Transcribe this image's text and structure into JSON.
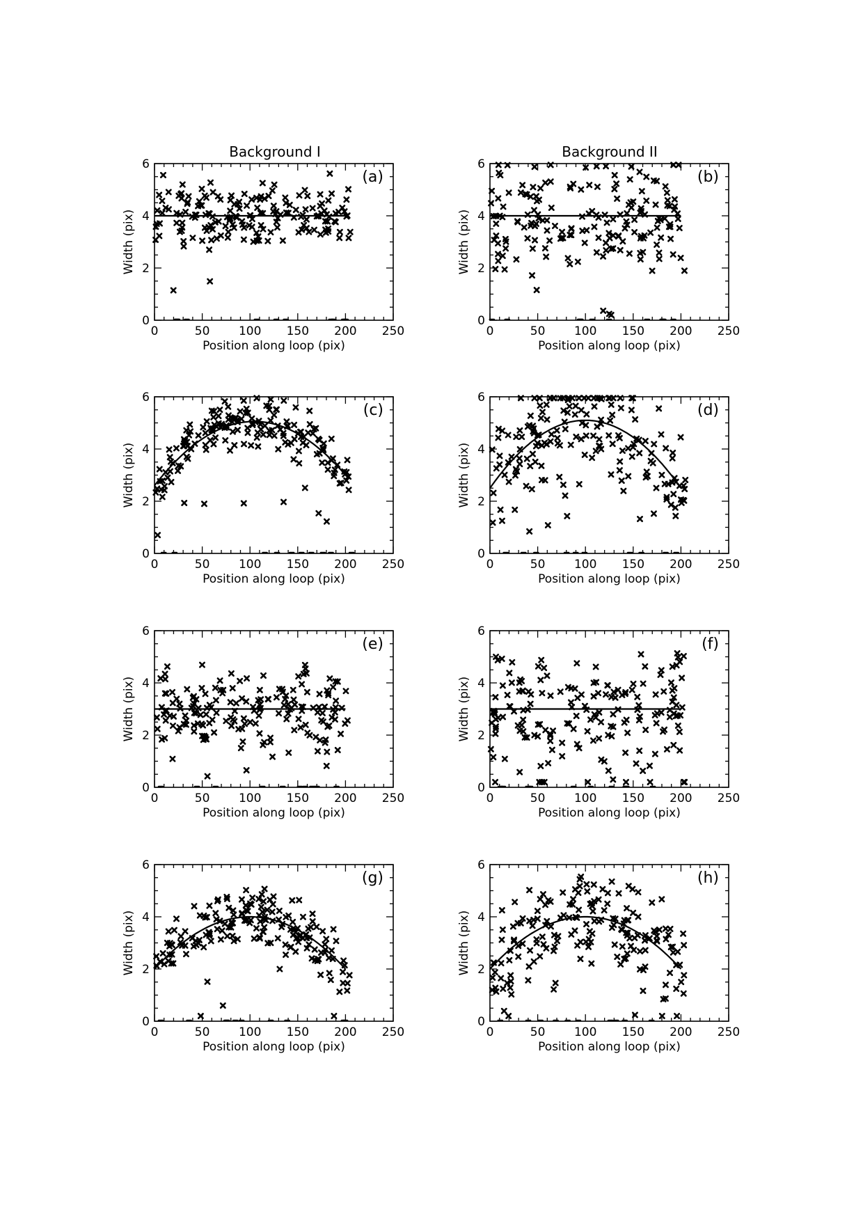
{
  "columns": [
    "Background I",
    "Background II"
  ],
  "chart_data": [
    {
      "id": "a",
      "type": "scatter",
      "panel_label": "(a)",
      "xlabel": "Position along loop (pix)",
      "ylabel": "Width (pix)",
      "xlim": [
        0,
        250
      ],
      "ylim": [
        0,
        6
      ],
      "xticks": [
        0,
        50,
        100,
        150,
        200,
        250
      ],
      "yticks": [
        0,
        2,
        4,
        6
      ],
      "fit": {
        "kind": "constant",
        "a0": 4.0,
        "a1": 0,
        "a2": 0,
        "x_range": [
          0,
          200
        ]
      },
      "seed": 11,
      "spread": 0.6
    },
    {
      "id": "b",
      "type": "scatter",
      "panel_label": "(b)",
      "xlabel": "Position along loop (pix)",
      "ylabel": "Width (pix)",
      "xlim": [
        0,
        250
      ],
      "ylim": [
        0,
        6
      ],
      "xticks": [
        0,
        50,
        100,
        150,
        200,
        250
      ],
      "yticks": [
        0,
        2,
        4,
        6
      ],
      "fit": {
        "kind": "constant",
        "a0": 4.0,
        "a1": 0,
        "a2": 0,
        "x_range": [
          0,
          200
        ]
      },
      "seed": 23,
      "spread": 1.0
    },
    {
      "id": "c",
      "type": "scatter",
      "panel_label": "(c)",
      "xlabel": "Position along loop (pix)",
      "ylabel": "Width (pix)",
      "xlim": [
        0,
        250
      ],
      "ylim": [
        0,
        6
      ],
      "xticks": [
        0,
        50,
        100,
        150,
        200,
        250
      ],
      "yticks": [
        0,
        2,
        4,
        6
      ],
      "fit": {
        "kind": "quadratic",
        "a0": 2.6,
        "a1": 0.047,
        "a2": -0.000225,
        "x_range": [
          0,
          200
        ]
      },
      "seed": 37,
      "spread": 0.45
    },
    {
      "id": "d",
      "type": "scatter",
      "panel_label": "(d)",
      "xlabel": "Position along loop (pix)",
      "ylabel": "Width (pix)",
      "xlim": [
        0,
        250
      ],
      "ylim": [
        0,
        6
      ],
      "xticks": [
        0,
        50,
        100,
        150,
        200,
        250
      ],
      "yticks": [
        0,
        2,
        4,
        6
      ],
      "fit": {
        "kind": "quadratic",
        "a0": 2.5,
        "a1": 0.052,
        "a2": -0.00026,
        "x_range": [
          0,
          200
        ]
      },
      "seed": 41,
      "spread": 1.0
    },
    {
      "id": "e",
      "type": "scatter",
      "panel_label": "(e)",
      "xlabel": "Position along loop (pix)",
      "ylabel": "Width (pix)",
      "xlim": [
        0,
        250
      ],
      "ylim": [
        0,
        6
      ],
      "xticks": [
        0,
        50,
        100,
        150,
        200,
        250
      ],
      "yticks": [
        0,
        2,
        4,
        6
      ],
      "fit": {
        "kind": "constant",
        "a0": 3.0,
        "a1": 0,
        "a2": 0,
        "x_range": [
          0,
          200
        ]
      },
      "seed": 53,
      "spread": 0.8
    },
    {
      "id": "f",
      "type": "scatter",
      "panel_label": "(f)",
      "xlabel": "Position along loop (pix)",
      "ylabel": "Width (pix)",
      "xlim": [
        0,
        250
      ],
      "ylim": [
        0,
        6
      ],
      "xticks": [
        0,
        50,
        100,
        150,
        200,
        250
      ],
      "yticks": [
        0,
        2,
        4,
        6
      ],
      "fit": {
        "kind": "constant",
        "a0": 3.0,
        "a1": 0,
        "a2": 0,
        "x_range": [
          0,
          200
        ]
      },
      "seed": 67,
      "spread": 1.1
    },
    {
      "id": "g",
      "type": "scatter",
      "panel_label": "(g)",
      "xlabel": "Position along loop (pix)",
      "ylabel": "Width (pix)",
      "xlim": [
        0,
        250
      ],
      "ylim": [
        0,
        6
      ],
      "xticks": [
        0,
        50,
        100,
        150,
        200,
        250
      ],
      "yticks": [
        0,
        2,
        4,
        6
      ],
      "fit": {
        "kind": "quadratic",
        "a0": 2.0,
        "a1": 0.04,
        "a2": -0.0002,
        "x_range": [
          0,
          200
        ]
      },
      "seed": 79,
      "spread": 0.5
    },
    {
      "id": "h",
      "type": "scatter",
      "panel_label": "(h)",
      "xlabel": "Position along loop (pix)",
      "ylabel": "Width (pix)",
      "xlim": [
        0,
        250
      ],
      "ylim": [
        0,
        6
      ],
      "xticks": [
        0,
        50,
        100,
        150,
        200,
        250
      ],
      "yticks": [
        0,
        2,
        4,
        6
      ],
      "fit": {
        "kind": "quadratic",
        "a0": 2.0,
        "a1": 0.04,
        "a2": -0.0002,
        "x_range": [
          0,
          200
        ]
      },
      "seed": 83,
      "spread": 0.9
    }
  ]
}
